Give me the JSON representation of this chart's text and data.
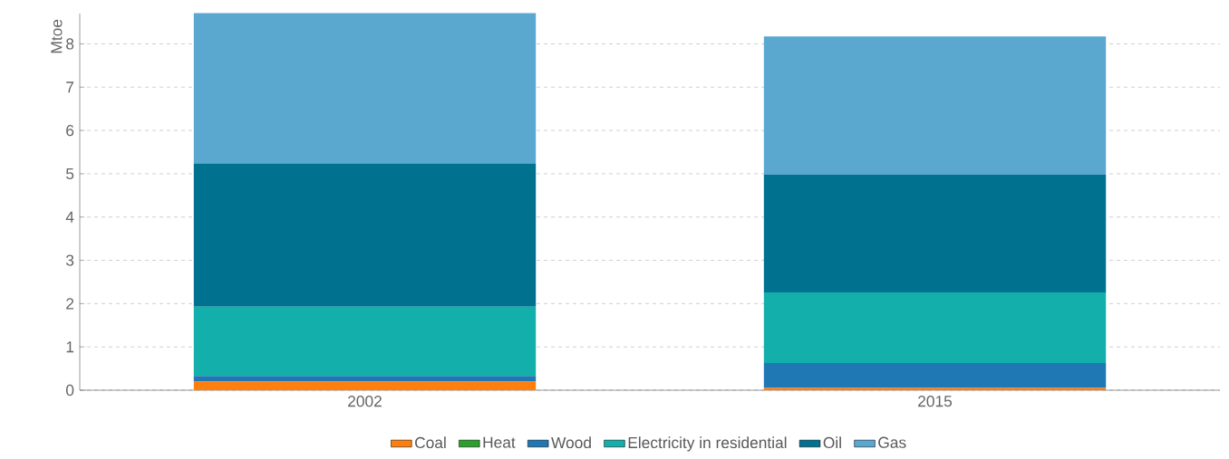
{
  "chart_data": {
    "type": "bar",
    "stacked": true,
    "ylabel": "Mtoe",
    "categories": [
      "2002",
      "2015"
    ],
    "series": [
      {
        "name": "Coal",
        "color": "#ff7f0e",
        "values": [
          0.2,
          0.05
        ]
      },
      {
        "name": "Heat",
        "color": "#2ca02c",
        "values": [
          0,
          0
        ]
      },
      {
        "name": "Wood",
        "color": "#1f77b4",
        "values": [
          0.13,
          0.58
        ]
      },
      {
        "name": "Electricity in residential",
        "color": "#12afab",
        "values": [
          1.6,
          1.63
        ]
      },
      {
        "name": "Oil",
        "color": "#00728f",
        "values": [
          3.31,
          2.72
        ]
      },
      {
        "name": "Gas",
        "color": "#5aa7d0",
        "values": [
          3.47,
          3.19
        ]
      }
    ],
    "ylim": [
      0,
      8.7
    ],
    "yticks": [
      0,
      1,
      2,
      3,
      4,
      5,
      6,
      7,
      8
    ],
    "grid": "y",
    "legend": "bottom"
  }
}
